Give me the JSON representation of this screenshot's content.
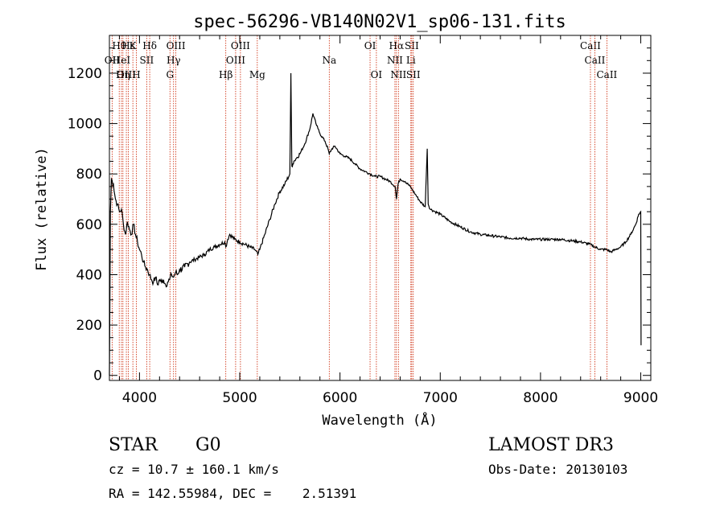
{
  "chart_data": {
    "type": "line",
    "title": "spec-56296-VB140N02V1_sp06-131.fits",
    "xlabel": "Wavelength (Å)",
    "ylabel": "Flux (relative)",
    "xlim": [
      3700,
      9100
    ],
    "ylim": [
      -20,
      1350
    ],
    "xticks": [
      4000,
      5000,
      6000,
      7000,
      8000,
      9000
    ],
    "yticks": [
      0,
      200,
      400,
      600,
      800,
      1000,
      1200
    ],
    "xticks_minor_step": 200,
    "yticks_minor_step": 50,
    "grid": false,
    "series": [
      {
        "values_x": [
          3700,
          3705,
          3710,
          3720,
          3740,
          3760,
          3780,
          3800,
          3820,
          3840,
          3860,
          3880,
          3900,
          3920,
          3940,
          3960,
          3980,
          4000,
          4020,
          4040,
          4060,
          4080,
          4100,
          4120,
          4140,
          4160,
          4180,
          4200,
          4220,
          4240,
          4260,
          4280,
          4300,
          4320,
          4340,
          4360,
          4380,
          4400,
          4450,
          4500,
          4550,
          4600,
          4650,
          4700,
          4750,
          4800,
          4850,
          4861,
          4880,
          4900,
          4950,
          5000,
          5050,
          5100,
          5150,
          5180,
          5200,
          5250,
          5300,
          5350,
          5400,
          5450,
          5500,
          5510,
          5520,
          5530,
          5540,
          5560,
          5600,
          5650,
          5700,
          5730,
          5760,
          5780,
          5800,
          5850,
          5880,
          5893,
          5920,
          5950,
          6000,
          6050,
          6100,
          6150,
          6200,
          6250,
          6300,
          6350,
          6400,
          6450,
          6500,
          6550,
          6563,
          6580,
          6600,
          6650,
          6700,
          6716,
          6750,
          6800,
          6850,
          6870,
          6880,
          6900,
          6950,
          7000,
          7100,
          7200,
          7300,
          7400,
          7500,
          7600,
          7700,
          7800,
          7900,
          8000,
          8100,
          8200,
          8300,
          8400,
          8498,
          8542,
          8600,
          8662,
          8700,
          8750,
          8800,
          8850,
          8900,
          8950,
          8980,
          9000,
          9003
        ],
        "values_y": [
          0,
          300,
          650,
          780,
          760,
          700,
          680,
          650,
          660,
          600,
          560,
          610,
          580,
          560,
          600,
          560,
          530,
          500,
          480,
          450,
          430,
          420,
          400,
          380,
          370,
          390,
          360,
          380,
          370,
          380,
          360,
          370,
          380,
          400,
          390,
          410,
          400,
          420,
          430,
          450,
          460,
          470,
          480,
          500,
          510,
          520,
          530,
          510,
          540,
          560,
          540,
          530,
          520,
          510,
          500,
          480,
          500,
          560,
          620,
          680,
          730,
          760,
          800,
          1200,
          830,
          840,
          850,
          860,
          880,
          920,
          980,
          1040,
          1000,
          980,
          960,
          930,
          900,
          880,
          900,
          910,
          880,
          870,
          860,
          840,
          820,
          810,
          800,
          790,
          790,
          780,
          770,
          750,
          700,
          760,
          780,
          770,
          750,
          740,
          720,
          690,
          670,
          900,
          680,
          660,
          650,
          640,
          610,
          590,
          570,
          560,
          555,
          550,
          545,
          545,
          540,
          540,
          540,
          540,
          535,
          530,
          520,
          510,
          500,
          500,
          490,
          500,
          510,
          530,
          560,
          600,
          640,
          650,
          120
        ]
      }
    ],
    "line_markers": [
      {
        "label": "Hθ",
        "x": 3798,
        "row": 0
      },
      {
        "label": "OII",
        "x": 3727,
        "row": 1
      },
      {
        "label": "OIII",
        "x": 3869,
        "row": 2
      },
      {
        "label": "Hε",
        "x": 3889,
        "row": 0
      },
      {
        "label": "Hη",
        "x": 3835,
        "row": 2
      },
      {
        "label": "HeI",
        "x": 3820,
        "row": 1
      },
      {
        "label": "K",
        "x": 3934,
        "row": 0
      },
      {
        "label": "H",
        "x": 3969,
        "row": 2
      },
      {
        "label": "SII",
        "x": 4072,
        "row": 1
      },
      {
        "label": "Hδ",
        "x": 4102,
        "row": 0
      },
      {
        "label": "OIII",
        "x": 4363,
        "row": 0
      },
      {
        "label": "Hγ",
        "x": 4340,
        "row": 1
      },
      {
        "label": "G",
        "x": 4304,
        "row": 2
      },
      {
        "label": "Hβ",
        "x": 4861,
        "row": 2
      },
      {
        "label": "OIII",
        "x": 4959,
        "row": 1
      },
      {
        "label": "OIII",
        "x": 5007,
        "row": 0
      },
      {
        "label": "Mg",
        "x": 5175,
        "row": 2
      },
      {
        "label": "Na",
        "x": 5893,
        "row": 1
      },
      {
        "label": "OI",
        "x": 6300,
        "row": 0
      },
      {
        "label": "OI",
        "x": 6363,
        "row": 2
      },
      {
        "label": "NII",
        "x": 6548,
        "row": 1
      },
      {
        "label": "Hα",
        "x": 6563,
        "row": 0
      },
      {
        "label": "NII",
        "x": 6583,
        "row": 2
      },
      {
        "label": "Li",
        "x": 6707,
        "row": 1
      },
      {
        "label": "SII",
        "x": 6716,
        "row": 0
      },
      {
        "label": "SII",
        "x": 6731,
        "row": 2
      },
      {
        "label": "CaII",
        "x": 8498,
        "row": 0
      },
      {
        "label": "CaII",
        "x": 8542,
        "row": 1
      },
      {
        "label": "CaII",
        "x": 8662,
        "row": 2
      }
    ],
    "colors": {
      "marker_line": "#cc2200",
      "spectrum": "#000000"
    }
  },
  "info": {
    "object_class": "STAR",
    "subclass": "G0",
    "survey": "LAMOST DR3",
    "redshift_text": "cz = 10.7 ± 160.1 km/s",
    "obs_date_text": "Obs-Date: 20130103",
    "coords_text": "RA = 142.55984, DEC =    2.51391"
  }
}
